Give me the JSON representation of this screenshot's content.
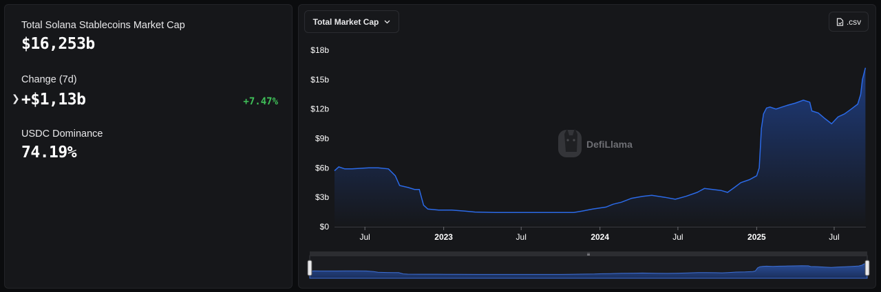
{
  "stats": {
    "market_cap_label": "Total Solana Stablecoins Market Cap",
    "market_cap_value": "$16,253b",
    "change_label": "Change (7d)",
    "change_value": "+$1,13b",
    "change_pct": "+7.47%",
    "dominance_label": "USDC Dominance",
    "dominance_value": "74.19%"
  },
  "controls": {
    "metric_select": "Total Market Cap",
    "csv_label": ".csv"
  },
  "watermark": "DefiLlama",
  "colors": {
    "accent_line": "#2b6ae8",
    "positive": "#3fbf58",
    "panel_bg": "#16171a"
  },
  "chart_data": {
    "type": "area",
    "series": [
      {
        "values": [
          [
            "2022-04-21",
            5.7
          ],
          [
            "2022-05-01",
            6.1
          ],
          [
            "2022-05-15",
            5.9
          ],
          [
            "2022-06-01",
            5.9
          ],
          [
            "2022-06-20",
            5.95
          ],
          [
            "2022-07-10",
            6.0
          ],
          [
            "2022-08-01",
            6.0
          ],
          [
            "2022-08-25",
            5.9
          ],
          [
            "2022-09-10",
            5.2
          ],
          [
            "2022-09-20",
            4.2
          ],
          [
            "2022-10-10",
            4.0
          ],
          [
            "2022-10-25",
            3.8
          ],
          [
            "2022-11-05",
            3.8
          ],
          [
            "2022-11-15",
            2.2
          ],
          [
            "2022-11-25",
            1.8
          ],
          [
            "2022-12-20",
            1.7
          ],
          [
            "2023-01-20",
            1.7
          ],
          [
            "2023-02-20",
            1.6
          ],
          [
            "2023-03-15",
            1.5
          ],
          [
            "2023-05-01",
            1.45
          ],
          [
            "2023-07-01",
            1.45
          ],
          [
            "2023-09-01",
            1.45
          ],
          [
            "2023-11-01",
            1.45
          ],
          [
            "2023-11-20",
            1.6
          ],
          [
            "2023-12-15",
            1.8
          ],
          [
            "2024-01-15",
            2.0
          ],
          [
            "2024-02-01",
            2.3
          ],
          [
            "2024-02-20",
            2.5
          ],
          [
            "2024-03-15",
            2.9
          ],
          [
            "2024-04-10",
            3.1
          ],
          [
            "2024-05-01",
            3.2
          ],
          [
            "2024-06-01",
            3.0
          ],
          [
            "2024-06-25",
            2.8
          ],
          [
            "2024-07-20",
            3.1
          ],
          [
            "2024-08-15",
            3.5
          ],
          [
            "2024-09-01",
            3.9
          ],
          [
            "2024-09-20",
            3.8
          ],
          [
            "2024-10-10",
            3.7
          ],
          [
            "2024-10-25",
            3.5
          ],
          [
            "2024-11-10",
            4.0
          ],
          [
            "2024-11-25",
            4.5
          ],
          [
            "2024-12-15",
            4.8
          ],
          [
            "2025-01-01",
            5.2
          ],
          [
            "2025-01-07",
            6.0
          ],
          [
            "2025-01-12",
            10.0
          ],
          [
            "2025-01-17",
            11.5
          ],
          [
            "2025-01-24",
            12.1
          ],
          [
            "2025-02-01",
            12.2
          ],
          [
            "2025-02-15",
            12.0
          ],
          [
            "2025-03-01",
            12.2
          ],
          [
            "2025-03-15",
            12.4
          ],
          [
            "2025-04-01",
            12.6
          ],
          [
            "2025-04-20",
            12.9
          ],
          [
            "2025-05-05",
            12.7
          ],
          [
            "2025-05-10",
            11.8
          ],
          [
            "2025-05-25",
            11.6
          ],
          [
            "2025-06-10",
            11.0
          ],
          [
            "2025-06-25",
            10.5
          ],
          [
            "2025-07-10",
            11.2
          ],
          [
            "2025-07-25",
            11.5
          ],
          [
            "2025-08-10",
            12.0
          ],
          [
            "2025-08-25",
            12.5
          ],
          [
            "2025-09-01",
            13.5
          ],
          [
            "2025-09-05",
            15.0
          ],
          [
            "2025-09-12",
            16.2
          ]
        ]
      }
    ],
    "x_ticks": [
      {
        "label": "Jul",
        "date": "2022-07-01",
        "bold": false
      },
      {
        "label": "2023",
        "date": "2023-01-01",
        "bold": true
      },
      {
        "label": "Jul",
        "date": "2023-07-01",
        "bold": false
      },
      {
        "label": "2024",
        "date": "2024-01-01",
        "bold": true
      },
      {
        "label": "Jul",
        "date": "2024-07-01",
        "bold": false
      },
      {
        "label": "2025",
        "date": "2025-01-01",
        "bold": true
      },
      {
        "label": "Jul",
        "date": "2025-07-01",
        "bold": false
      }
    ],
    "y_ticks": [
      {
        "label": "$0",
        "value": 0
      },
      {
        "label": "$3b",
        "value": 3
      },
      {
        "label": "$6b",
        "value": 6
      },
      {
        "label": "$9b",
        "value": 9
      },
      {
        "label": "$12b",
        "value": 12
      },
      {
        "label": "$15b",
        "value": 15
      },
      {
        "label": "$18b",
        "value": 18
      }
    ],
    "ylim": [
      0,
      18
    ],
    "xlim": [
      "2022-04-21",
      "2025-09-13"
    ],
    "grid": false
  }
}
